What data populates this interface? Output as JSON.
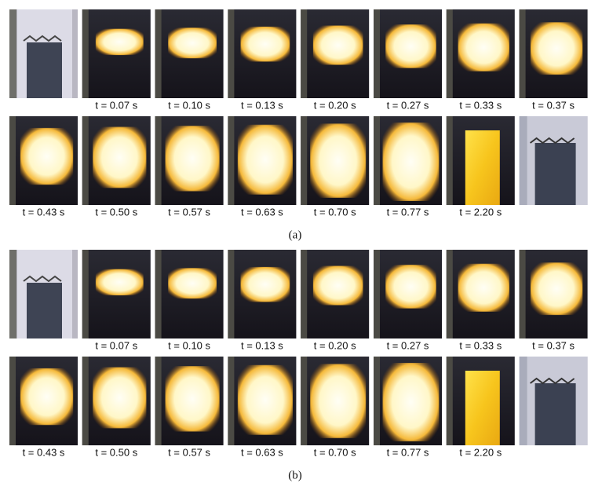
{
  "panels": [
    {
      "label": "(a)",
      "rows": [
        {
          "captions": [
            null,
            "t = 0.07 s",
            "t = 0.10 s",
            "t = 0.13 s",
            "t = 0.20 s",
            "t = 0.27 s",
            "t = 0.33 s",
            "t = 0.37 s"
          ]
        },
        {
          "captions": [
            "t = 0.43 s",
            "t = 0.50 s",
            "t = 0.57 s",
            "t = 0.63 s",
            "t = 0.70 s",
            "t = 0.77 s",
            "t = 2.20 s",
            null
          ]
        }
      ]
    },
    {
      "label": "(b)",
      "rows": [
        {
          "captions": [
            null,
            "t = 0.07 s",
            "t = 0.10 s",
            "t = 0.13 s",
            "t = 0.20 s",
            "t = 0.27 s",
            "t = 0.33 s",
            "t = 0.37 s"
          ]
        },
        {
          "captions": [
            "t = 0.43 s",
            "t = 0.50 s",
            "t = 0.57 s",
            "t = 0.63 s",
            "t = 0.70 s",
            "t = 0.77 s",
            "t = 2.20 s",
            null
          ]
        }
      ]
    }
  ]
}
